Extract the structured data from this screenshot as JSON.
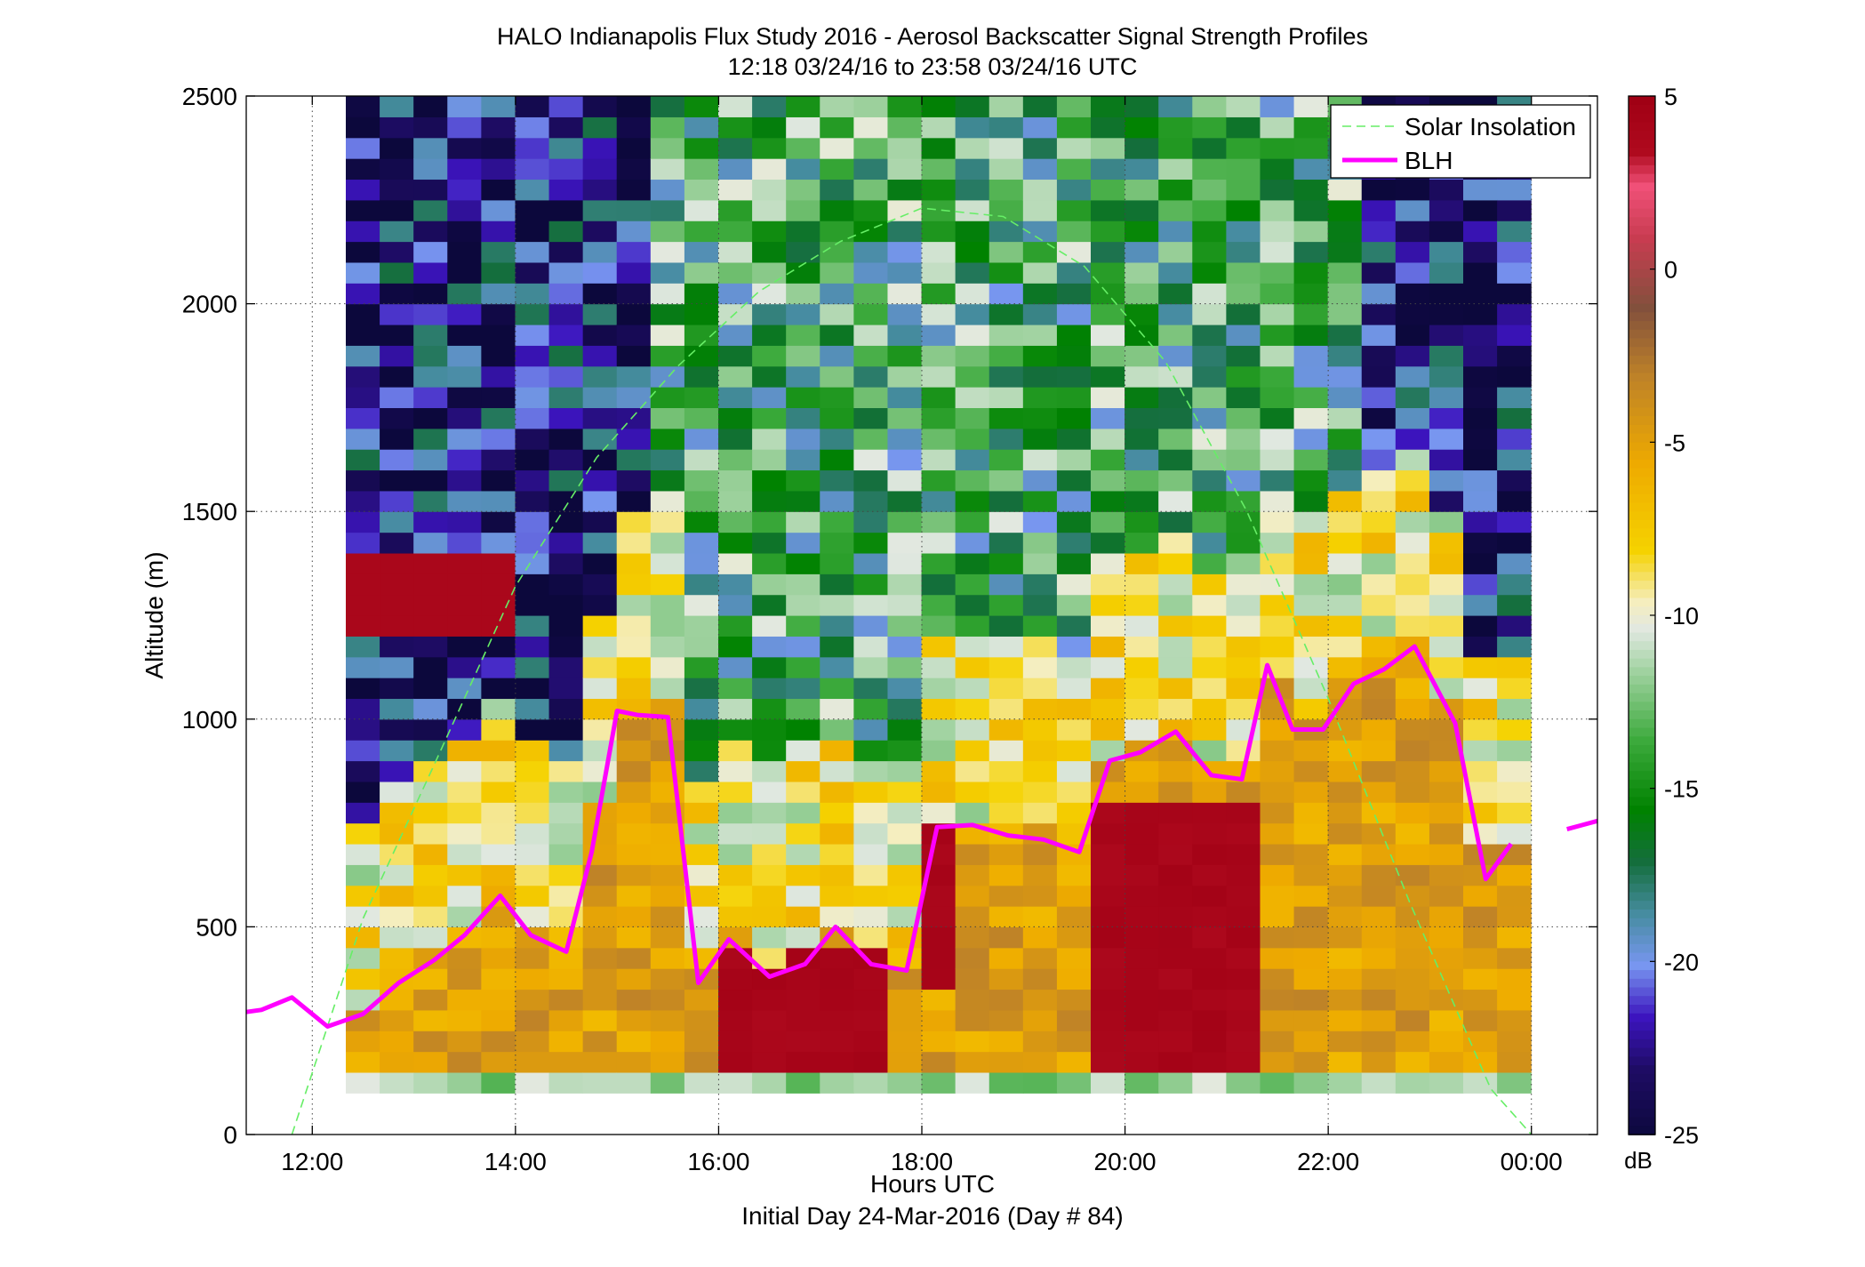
{
  "chart_data": {
    "type": "heatmap",
    "title": "HALO Indianapolis Flux Study 2016 - Aerosol Backscatter Signal Strength Profiles",
    "subtitle": "12:18 03/24/16 to 23:58 03/24/16  UTC",
    "xlabel": "Hours UTC",
    "xlabel2": "Initial Day 24-Mar-2016 (Day # 84)",
    "ylabel": "Altitude (m)",
    "xlim": [
      11.35,
      24.65
    ],
    "ylim": [
      0,
      2500
    ],
    "x_ticks": [
      12,
      14,
      16,
      18,
      20,
      22,
      24
    ],
    "x_tick_labels": [
      "12:00",
      "14:00",
      "16:00",
      "18:00",
      "20:00",
      "22:00",
      "00:00"
    ],
    "y_ticks": [
      0,
      500,
      1000,
      1500,
      2000,
      2500
    ],
    "y_tick_labels": [
      "0",
      "500",
      "1000",
      "1500",
      "2000",
      "2500"
    ],
    "grid": true,
    "grid_style": "dotted",
    "colorbar": {
      "label": "dB",
      "range": [
        -25,
        5
      ],
      "ticks": [
        5,
        0,
        -5,
        -10,
        -15,
        -20,
        -25
      ],
      "tick_labels": [
        "5",
        "0",
        "-5",
        "-10",
        "-15",
        "-20",
        "-25"
      ]
    },
    "legend": {
      "position": "top-right",
      "entries": [
        {
          "label": "Solar Insolation",
          "color": "#66ee66",
          "style": "dashed"
        },
        {
          "label": "BLH",
          "color": "#ff00ff",
          "style": "solid"
        }
      ]
    },
    "heatmap_grid": {
      "x_start": 12.33,
      "x_step": 0.3333,
      "columns": 35,
      "y_start": 100,
      "y_step": 50,
      "rows": 48
    },
    "blh_series": {
      "name": "BLH",
      "color": "#ff00ff",
      "x": [
        11.3,
        11.5,
        11.8,
        12.15,
        12.5,
        12.85,
        13.2,
        13.5,
        13.85,
        14.15,
        14.5,
        14.75,
        15.0,
        15.2,
        15.5,
        15.8,
        16.1,
        16.5,
        16.85,
        17.15,
        17.5,
        17.85,
        18.15,
        18.5,
        18.85,
        19.2,
        19.55,
        19.85,
        20.15,
        20.5,
        20.85,
        21.15,
        21.4,
        21.65,
        21.95,
        22.25,
        22.55,
        22.85,
        23.25,
        23.55,
        23.8
      ],
      "y": [
        295,
        300,
        330,
        260,
        290,
        365,
        420,
        480,
        575,
        480,
        440,
        680,
        1020,
        1010,
        1005,
        365,
        470,
        380,
        410,
        500,
        410,
        395,
        740,
        745,
        720,
        710,
        680,
        900,
        920,
        970,
        865,
        855,
        1130,
        975,
        975,
        1085,
        1120,
        1175,
        990,
        615,
        700
      ]
    },
    "blh_extra": {
      "x": [
        24.35,
        24.65
      ],
      "y": [
        735,
        755
      ]
    },
    "solar_series": {
      "name": "Solar Insolation",
      "color": "#66ee66",
      "x": [
        11.8,
        12.5,
        13.2,
        14.0,
        14.8,
        15.6,
        16.4,
        17.2,
        18.0,
        18.8,
        19.6,
        20.4,
        21.2,
        22.0,
        22.8,
        23.6,
        24.0
      ],
      "y": [
        0,
        520,
        890,
        1320,
        1630,
        1850,
        2030,
        2150,
        2230,
        2210,
        2090,
        1860,
        1500,
        1050,
        560,
        110,
        0
      ]
    }
  }
}
